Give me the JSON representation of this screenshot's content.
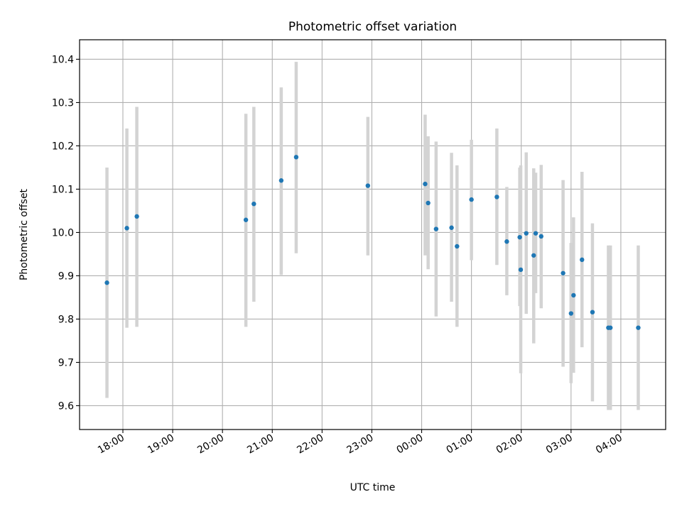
{
  "chart_data": {
    "type": "scatter",
    "title": "Photometric offset variation",
    "xlabel": "UTC time",
    "ylabel": "Photometric offset",
    "x_unit": "hours since 00:00 UTC (negative = previous day)",
    "xlim": [
      -6.87,
      4.9
    ],
    "ylim": [
      9.545,
      10.445
    ],
    "x_ticks": [
      -6,
      -5,
      -4,
      -3,
      -2,
      -1,
      0,
      1,
      2,
      3,
      4
    ],
    "x_tick_labels": [
      "18:00",
      "19:00",
      "20:00",
      "21:00",
      "22:00",
      "23:00",
      "00:00",
      "01:00",
      "02:00",
      "03:00",
      "04:00"
    ],
    "y_ticks": [
      9.6,
      9.7,
      9.8,
      9.9,
      10.0,
      10.1,
      10.2,
      10.3,
      10.4
    ],
    "y_tick_labels": [
      "9.6",
      "9.7",
      "9.8",
      "9.9",
      "10.0",
      "10.1",
      "10.2",
      "10.3",
      "10.4"
    ],
    "grid": true,
    "point_color": "#1f77b4",
    "errorbar_color": "#d3d3d3",
    "points": [
      {
        "time": "17:41",
        "x": -6.32,
        "y": 9.884,
        "lo": 9.618,
        "hi": 10.15
      },
      {
        "time": "18:05",
        "x": -5.92,
        "y": 10.01,
        "lo": 9.78,
        "hi": 10.24
      },
      {
        "time": "18:17",
        "x": -5.72,
        "y": 10.037,
        "lo": 9.782,
        "hi": 10.29
      },
      {
        "time": "20:28",
        "x": -3.53,
        "y": 10.029,
        "lo": 9.782,
        "hi": 10.274
      },
      {
        "time": "20:38",
        "x": -3.37,
        "y": 10.066,
        "lo": 9.84,
        "hi": 10.29
      },
      {
        "time": "21:11",
        "x": -2.82,
        "y": 10.12,
        "lo": 9.902,
        "hi": 10.335
      },
      {
        "time": "21:29",
        "x": -2.52,
        "y": 10.174,
        "lo": 9.952,
        "hi": 10.394
      },
      {
        "time": "22:55",
        "x": -1.08,
        "y": 10.108,
        "lo": 9.947,
        "hi": 10.267
      },
      {
        "time": "00:04",
        "x": 0.07,
        "y": 10.112,
        "lo": 9.947,
        "hi": 10.272
      },
      {
        "time": "00:08",
        "x": 0.13,
        "y": 10.068,
        "lo": 9.915,
        "hi": 10.222
      },
      {
        "time": "00:17",
        "x": 0.29,
        "y": 10.008,
        "lo": 9.806,
        "hi": 10.21
      },
      {
        "time": "00:36",
        "x": 0.6,
        "y": 10.011,
        "lo": 9.84,
        "hi": 10.184
      },
      {
        "time": "00:43",
        "x": 0.71,
        "y": 9.968,
        "lo": 9.782,
        "hi": 10.155
      },
      {
        "time": "01:00",
        "x": 1.0,
        "y": 10.076,
        "lo": 9.936,
        "hi": 10.214
      },
      {
        "time": "01:31",
        "x": 1.51,
        "y": 10.082,
        "lo": 9.925,
        "hi": 10.24
      },
      {
        "time": "01:43",
        "x": 1.71,
        "y": 9.979,
        "lo": 9.855,
        "hi": 10.105
      },
      {
        "time": "01:58",
        "x": 1.97,
        "y": 9.989,
        "lo": 9.83,
        "hi": 10.15
      },
      {
        "time": "01:59",
        "x": 1.99,
        "y": 9.914,
        "lo": 9.675,
        "hi": 10.155
      },
      {
        "time": "02:06",
        "x": 2.1,
        "y": 9.998,
        "lo": 9.812,
        "hi": 10.185
      },
      {
        "time": "02:15",
        "x": 2.25,
        "y": 9.947,
        "lo": 9.744,
        "hi": 10.148
      },
      {
        "time": "02:17",
        "x": 2.29,
        "y": 9.998,
        "lo": 9.86,
        "hi": 10.138
      },
      {
        "time": "02:24",
        "x": 2.4,
        "y": 9.991,
        "lo": 9.825,
        "hi": 10.156
      },
      {
        "time": "02:50",
        "x": 2.84,
        "y": 9.906,
        "lo": 9.69,
        "hi": 10.121
      },
      {
        "time": "03:00",
        "x": 3.0,
        "y": 9.813,
        "lo": 9.652,
        "hi": 9.976
      },
      {
        "time": "03:03",
        "x": 3.05,
        "y": 9.855,
        "lo": 9.676,
        "hi": 10.035
      },
      {
        "time": "03:13",
        "x": 3.22,
        "y": 9.937,
        "lo": 9.735,
        "hi": 10.14
      },
      {
        "time": "03:26",
        "x": 3.43,
        "y": 9.816,
        "lo": 9.61,
        "hi": 10.021
      },
      {
        "time": "03:45",
        "x": 3.75,
        "y": 9.78,
        "lo": 9.59,
        "hi": 9.97
      },
      {
        "time": "03:47",
        "x": 3.79,
        "y": 9.78,
        "lo": 9.59,
        "hi": 9.97
      },
      {
        "time": "04:21",
        "x": 4.35,
        "y": 9.78,
        "lo": 9.59,
        "hi": 9.97
      }
    ]
  }
}
